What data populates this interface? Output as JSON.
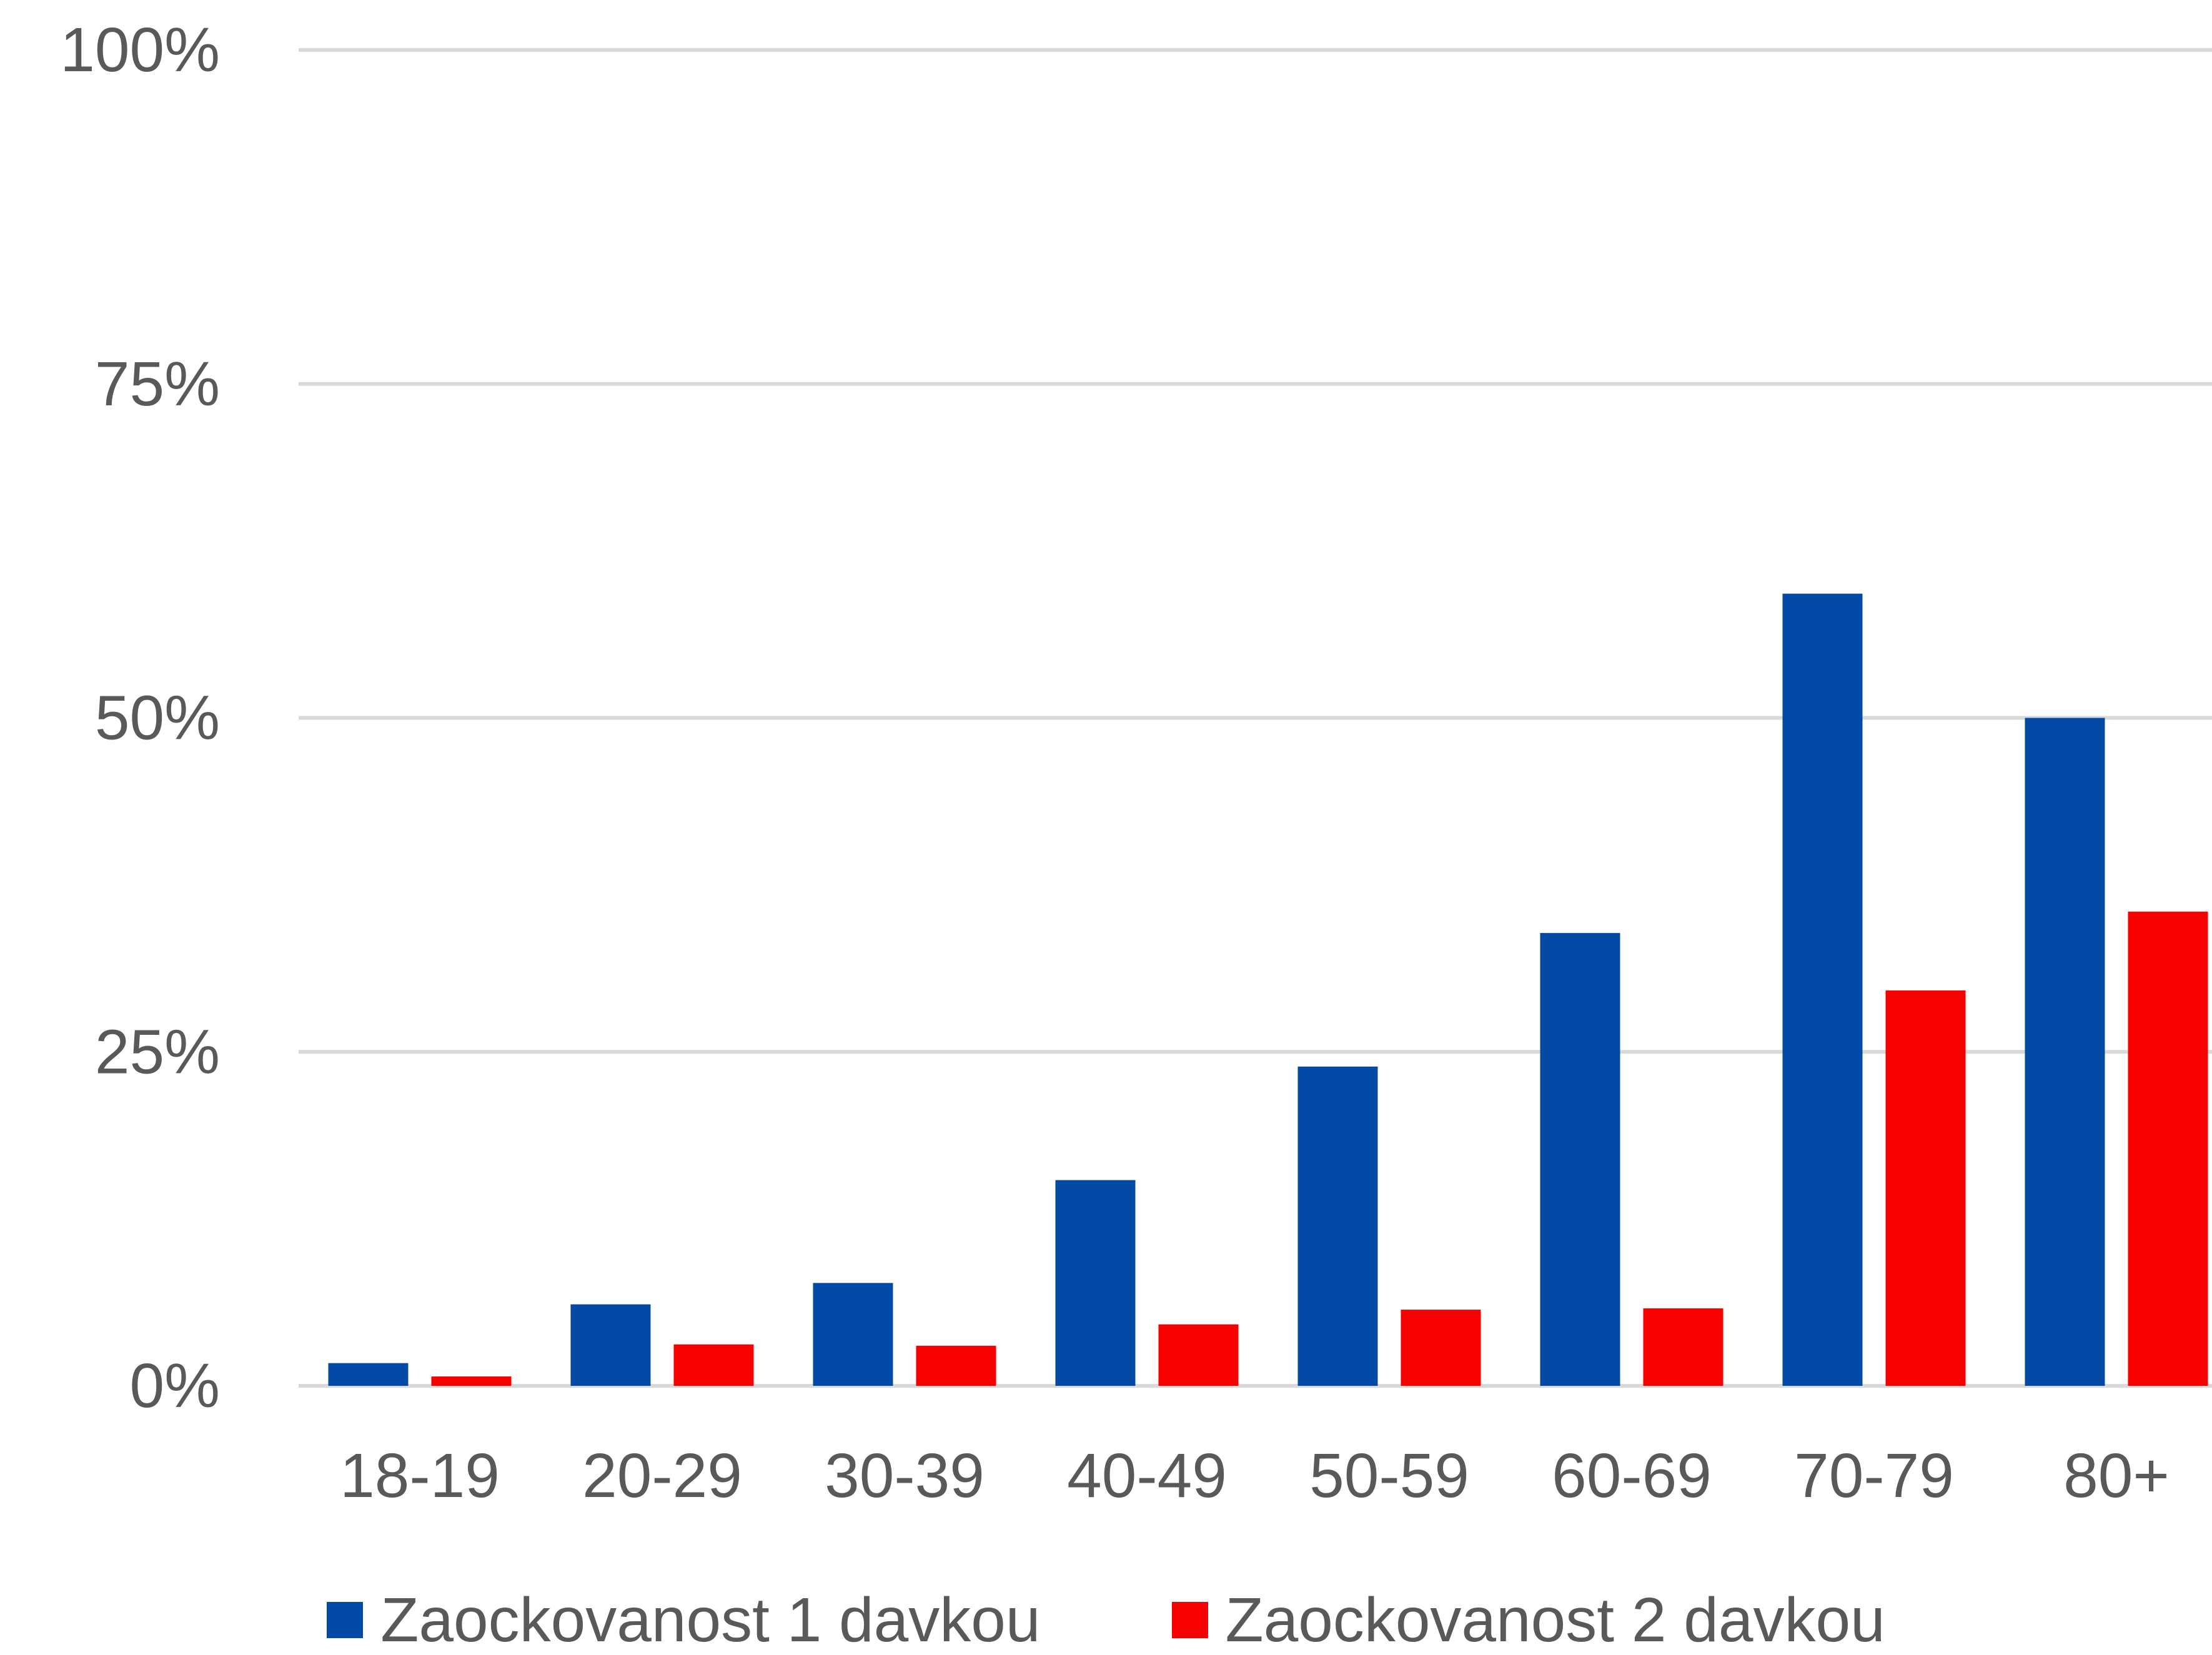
{
  "chart_data": {
    "type": "bar",
    "categories": [
      "18-19",
      "20-29",
      "30-39",
      "40-49",
      "50-59",
      "60-69",
      "70-79",
      "80+"
    ],
    "series": [
      {
        "name": "Zaockovanost 1 davkou",
        "color": "#034AA6",
        "values": [
          1.7,
          6.1,
          7.7,
          15.4,
          23.9,
          33.9,
          59.3,
          50.0
        ]
      },
      {
        "name": "Zaockovanost 2 davkou",
        "color": "#F70000",
        "values": [
          0.7,
          3.1,
          3.0,
          4.6,
          5.7,
          5.8,
          29.6,
          35.5
        ]
      }
    ],
    "yticks": [
      {
        "value": 0,
        "label": "0%"
      },
      {
        "value": 25,
        "label": "25%"
      },
      {
        "value": 50,
        "label": "50%"
      },
      {
        "value": 75,
        "label": "75%"
      },
      {
        "value": 100,
        "label": "100%"
      }
    ],
    "ylim": [
      0,
      100
    ],
    "title": "",
    "xlabel": "",
    "ylabel": "",
    "grid": true,
    "legend_position": "bottom",
    "gridline_color": "#D9D9D9",
    "text_color": "#595959"
  }
}
